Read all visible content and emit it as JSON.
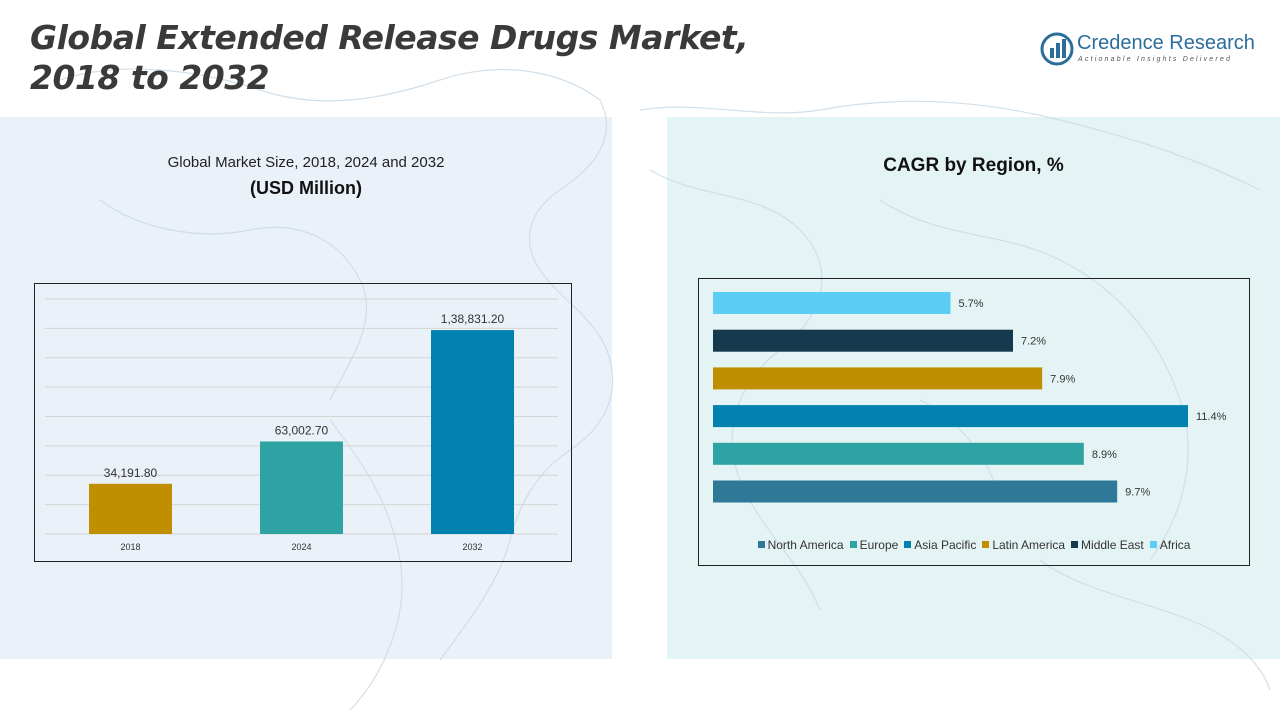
{
  "title": {
    "line1": "Global Extended Release Drugs Market,",
    "line2": "2018 to 2032"
  },
  "logo": {
    "name": "Credence Research",
    "tagline": "Actionable Insights Delivered",
    "icon": "bar-chart-logo-icon",
    "color": "#2b6e99"
  },
  "left_panel": {
    "subtitle": "Global Market Size, 2018, 2024 and 2032",
    "unit": "(USD Million)"
  },
  "right_panel": {
    "title": "CAGR by Region, %"
  },
  "chart_data": [
    {
      "type": "bar",
      "categories": [
        "2018",
        "2024",
        "2032"
      ],
      "values": [
        34191.8,
        63002.7,
        138831.2
      ],
      "labels": [
        "34,191.80",
        "63,002.70",
        "1,38,831.20"
      ],
      "colors": [
        "#bf8f00",
        "#2fa3a3",
        "#0081b0"
      ],
      "ylim": [
        0,
        160000
      ],
      "grid": true
    },
    {
      "type": "bar",
      "orientation": "horizontal",
      "categories": [
        "Africa",
        "Middle East",
        "Latin America",
        "Asia Pacific",
        "Europe",
        "North America"
      ],
      "values": [
        5.7,
        7.2,
        7.9,
        11.4,
        8.9,
        9.7
      ],
      "labels": [
        "5.7%",
        "7.2%",
        "7.9%",
        "11.4%",
        "8.9%",
        "9.7%"
      ],
      "colors": [
        "#5ccef5",
        "#17394d",
        "#bf8f00",
        "#0081b0",
        "#2fa3a3",
        "#2e7898"
      ],
      "xlim": [
        0,
        12
      ],
      "legend": {
        "placement": "bottom",
        "items": [
          {
            "name": "North America",
            "color": "#2e7898"
          },
          {
            "name": "Europe",
            "color": "#2fa3a3"
          },
          {
            "name": "Asia Pacific",
            "color": "#0081b0"
          },
          {
            "name": "Latin America",
            "color": "#bf8f00"
          },
          {
            "name": "Middle East",
            "color": "#17394d"
          },
          {
            "name": "Africa",
            "color": "#5ccef5"
          }
        ]
      }
    }
  ]
}
